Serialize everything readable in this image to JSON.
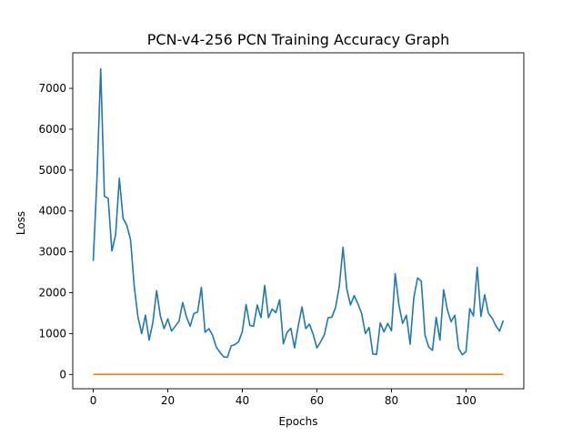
{
  "chart_data": {
    "type": "line",
    "title": "PCN-v4-256 PCN Training Accuracy Graph",
    "xlabel": "Epochs",
    "ylabel": "Loss",
    "xlim": [
      -5.5,
      115.5
    ],
    "ylim": [
      -350,
      7870
    ],
    "xticks": [
      0,
      20,
      40,
      60,
      80,
      100
    ],
    "yticks": [
      0,
      1000,
      2000,
      3000,
      4000,
      5000,
      6000,
      7000
    ],
    "grid": false,
    "legend": "none",
    "colors": {
      "series1": "#1f77b4",
      "series2": "#ff7f0e"
    },
    "series": [
      {
        "values": [
          2780,
          4800,
          7480,
          4360,
          4310,
          3020,
          3420,
          4800,
          3820,
          3650,
          3300,
          2150,
          1400,
          1000,
          1450,
          840,
          1280,
          2050,
          1430,
          1120,
          1360,
          1060,
          1180,
          1300,
          1760,
          1410,
          1180,
          1490,
          1530,
          2130,
          1030,
          1120,
          960,
          670,
          540,
          430,
          420,
          700,
          730,
          800,
          1050,
          1710,
          1200,
          1180,
          1700,
          1390,
          2180,
          1390,
          1600,
          1510,
          1830,
          750,
          1030,
          1130,
          650,
          1190,
          1650,
          1120,
          1230,
          980,
          650,
          800,
          970,
          1390,
          1400,
          1640,
          2150,
          3110,
          2100,
          1700,
          1930,
          1730,
          1490,
          1000,
          1150,
          500,
          490,
          1260,
          1040,
          1250,
          1070,
          2470,
          1700,
          1250,
          1450,
          740,
          1880,
          2360,
          2280,
          960,
          670,
          590,
          1400,
          840,
          2070,
          1580,
          1290,
          1450,
          640,
          480,
          560,
          1610,
          1430,
          2620,
          1420,
          1950,
          1500,
          1380,
          1190,
          1060,
          1320
        ]
      },
      {
        "values": [
          3,
          3,
          3,
          3,
          3,
          3,
          3,
          3,
          3,
          3,
          3,
          3,
          3,
          3,
          3,
          3,
          3,
          3,
          3,
          3,
          3,
          3,
          3,
          3,
          3,
          3,
          3,
          3,
          3,
          3,
          3,
          3,
          3,
          3,
          3,
          3,
          3,
          3,
          3,
          3,
          3,
          3,
          3,
          3,
          3,
          3,
          3,
          3,
          3,
          3,
          3,
          3,
          3,
          3,
          3,
          3,
          3,
          3,
          3,
          3,
          3,
          3,
          3,
          3,
          3,
          3,
          3,
          3,
          3,
          3,
          3,
          3,
          3,
          3,
          3,
          3,
          3,
          3,
          3,
          3,
          3,
          3,
          3,
          3,
          3,
          3,
          3,
          3,
          3,
          3,
          3,
          3,
          3,
          3,
          3,
          3,
          3,
          3,
          3,
          3,
          3,
          3,
          3,
          3,
          3,
          3,
          3,
          3,
          3,
          3,
          3
        ]
      }
    ]
  }
}
